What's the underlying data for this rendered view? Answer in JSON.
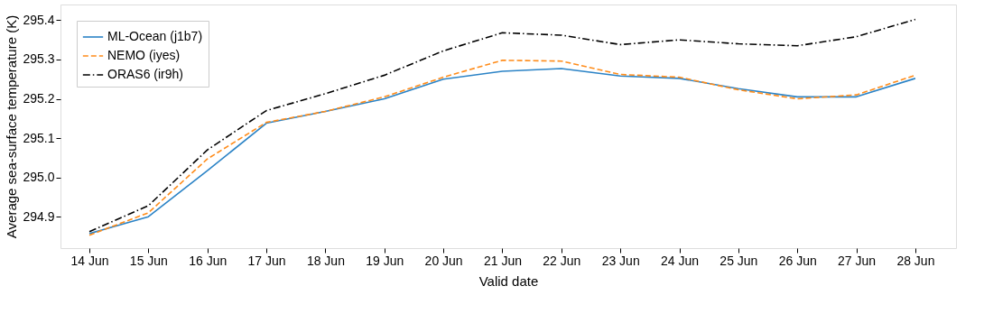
{
  "chart_data": {
    "type": "line",
    "xlabel": "Valid date",
    "ylabel": "Average sea-surface temperature (K)",
    "categories": [
      "14 Jun",
      "15 Jun",
      "16 Jun",
      "17 Jun",
      "18 Jun",
      "19 Jun",
      "20 Jun",
      "21 Jun",
      "22 Jun",
      "23 Jun",
      "24 Jun",
      "25 Jun",
      "26 Jun",
      "27 Jun",
      "28 Jun"
    ],
    "series": [
      {
        "name": "ML-Ocean (j1b7)",
        "color": "#2b83c6",
        "line_style": "solid",
        "values": [
          294.857,
          294.9,
          295.017,
          295.138,
          295.168,
          295.2,
          295.25,
          295.27,
          295.277,
          295.258,
          295.252,
          295.226,
          295.205,
          295.205,
          295.252
        ]
      },
      {
        "name": "NEMO (iyes)",
        "color": "#ff8c1a",
        "line_style": "dashed",
        "values": [
          294.853,
          294.91,
          295.047,
          295.14,
          295.168,
          295.205,
          295.255,
          295.298,
          295.296,
          295.262,
          295.255,
          295.223,
          295.2,
          295.21,
          295.26
        ]
      },
      {
        "name": "ORAS6 (ir9h)",
        "color": "#000000",
        "line_style": "dashdot",
        "values": [
          294.862,
          294.928,
          295.07,
          295.17,
          295.213,
          295.26,
          295.322,
          295.368,
          295.362,
          295.338,
          295.35,
          295.34,
          295.335,
          295.358,
          295.402
        ]
      }
    ],
    "ylim": [
      294.82,
      295.44
    ],
    "yticks": [
      294.9,
      {
        "value": 295,
        "label": "295.0"
      },
      295.1,
      295.2,
      295.3,
      295.4
    ],
    "grid": false,
    "legend": "top left",
    "marker": "none"
  }
}
